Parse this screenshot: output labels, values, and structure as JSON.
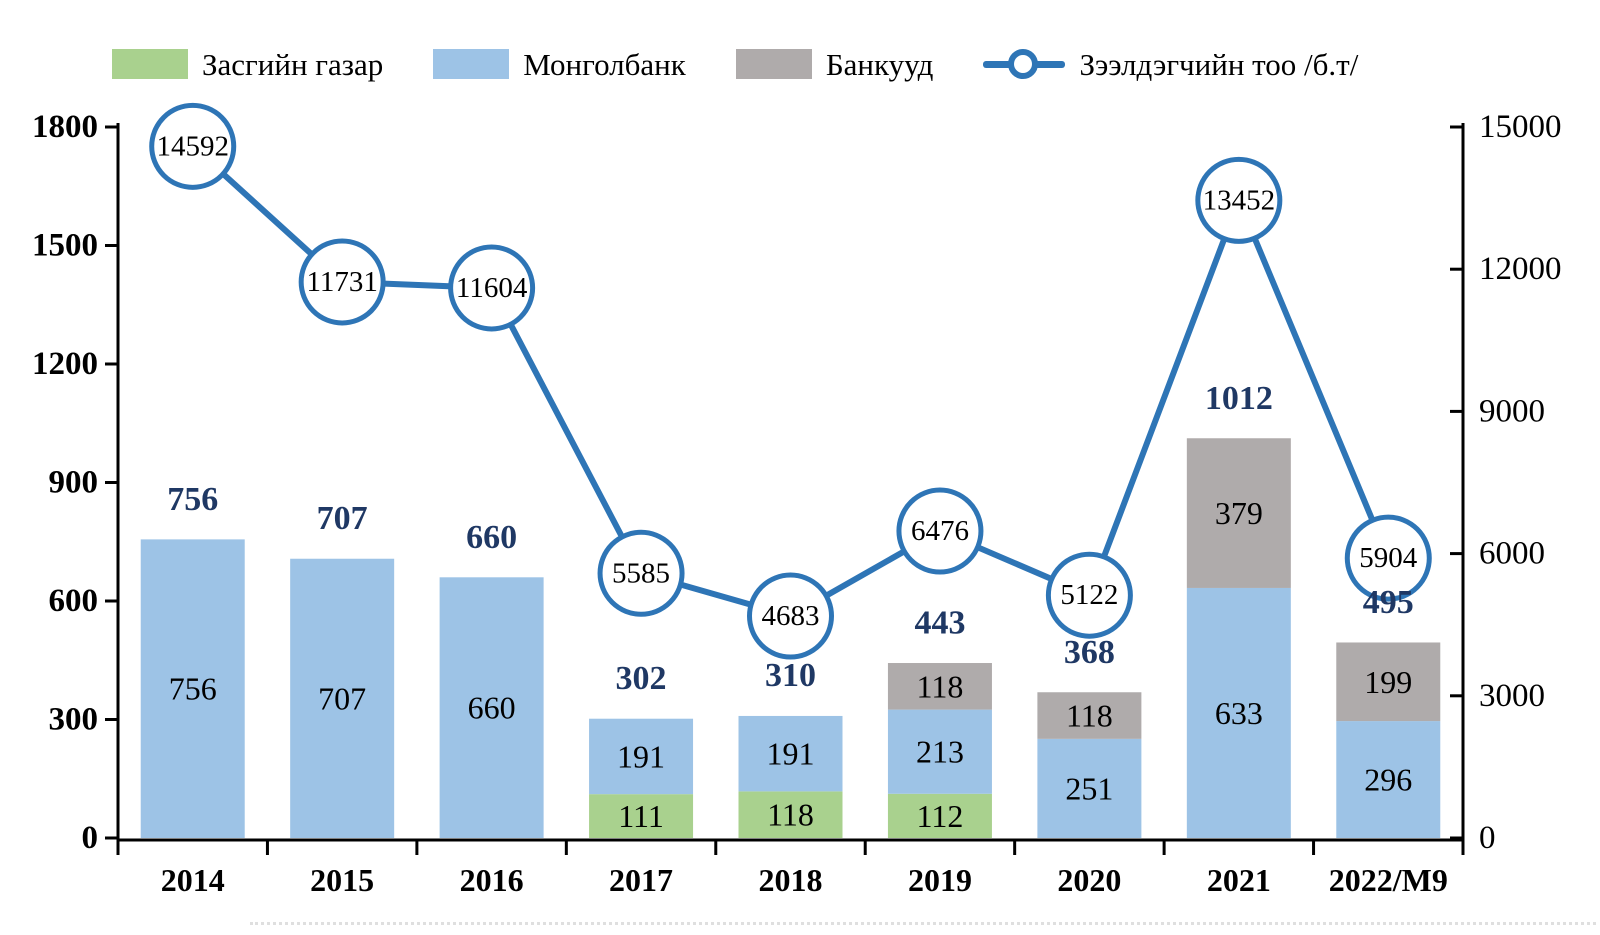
{
  "legend": {
    "items": [
      {
        "label": "Засгийн газар",
        "color": "#A9D18E",
        "type": "swatch"
      },
      {
        "label": "Монголбанк",
        "color": "#9DC3E6",
        "type": "swatch"
      },
      {
        "label": "Банкууд",
        "color": "#AFABAB",
        "type": "swatch"
      },
      {
        "label": "Зээлдэгчийн тоо /б.т/",
        "color": "#2E75B6",
        "type": "line-marker"
      }
    ]
  },
  "chart_data": {
    "type": "combo-stacked-bar-line",
    "categories": [
      "2014",
      "2015",
      "2016",
      "2017",
      "2018",
      "2019",
      "2020",
      "2021",
      "2022/M9"
    ],
    "bar_series": [
      {
        "name": "Засгийн газар",
        "color": "#A9D18E",
        "values": [
          0,
          0,
          0,
          111,
          118,
          112,
          0,
          0,
          0
        ]
      },
      {
        "name": "Монголбанк",
        "color": "#9DC3E6",
        "values": [
          756,
          707,
          660,
          191,
          191,
          213,
          251,
          633,
          296
        ]
      },
      {
        "name": "Банкууд",
        "color": "#AFABAB",
        "values": [
          0,
          0,
          0,
          0,
          0,
          118,
          118,
          379,
          199
        ]
      }
    ],
    "bar_totals": [
      756,
      707,
      660,
      302,
      310,
      443,
      368,
      1012,
      495
    ],
    "line_series": {
      "name": "Зээлдэгчийн тоо /б.т/",
      "color": "#2E75B6",
      "values": [
        14592,
        11731,
        11604,
        5585,
        4683,
        6476,
        5122,
        13452,
        5904
      ]
    },
    "left_axis": {
      "min": 0,
      "max": 1800,
      "step": 300,
      "ticks": [
        "0",
        "300",
        "600",
        "900",
        "1200",
        "1500",
        "1800"
      ]
    },
    "right_axis": {
      "min": 0,
      "max": 15000,
      "step": 3000,
      "ticks": [
        "0",
        "3000",
        "6000",
        "9000",
        "12000",
        "15000"
      ]
    },
    "legend_position": "top",
    "grid": false,
    "colors": {
      "total_label": "#1F3864",
      "segment_label": "#000000",
      "axis": "#000000",
      "marker_fill": "#FFFFFF"
    }
  }
}
